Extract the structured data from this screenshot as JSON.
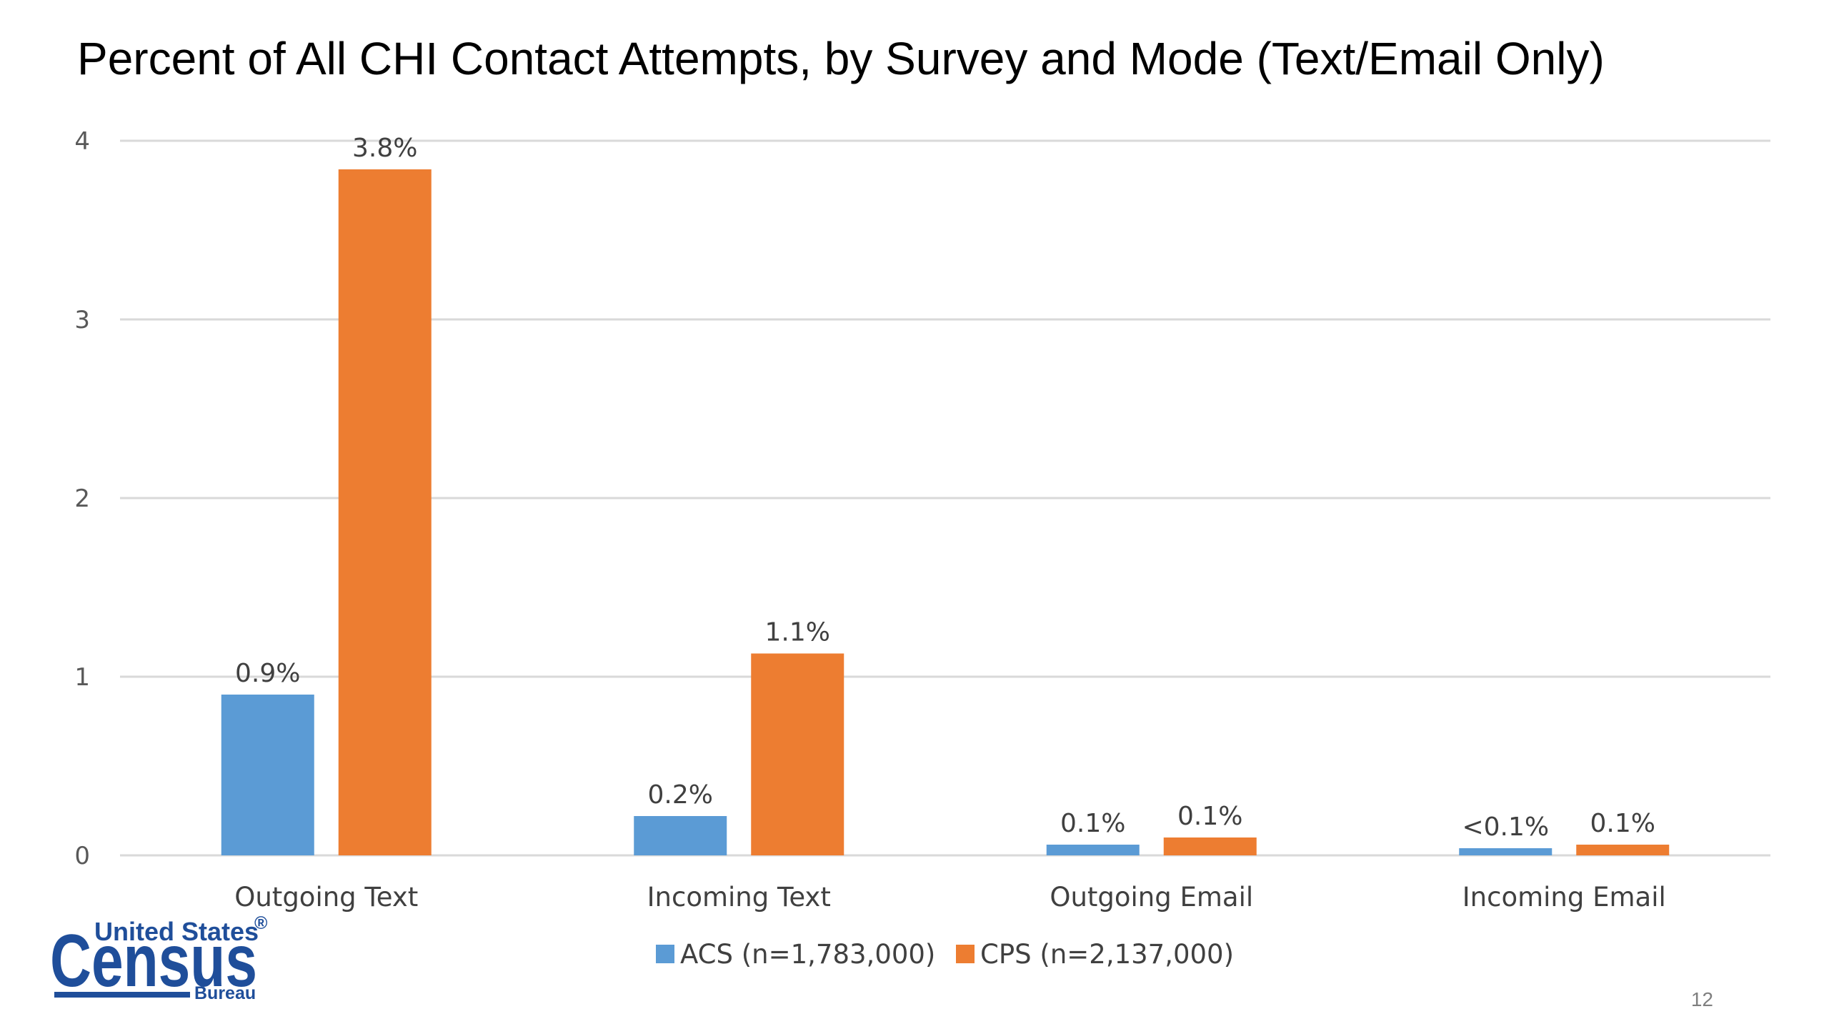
{
  "slide": {
    "title": "Percent of All CHI Contact Attempts, by Survey and Mode (Text/Email Only)",
    "page_number": "12"
  },
  "logo": {
    "line1": "United States",
    "registered_mark": "®",
    "line2": "Census",
    "line3": "Bureau",
    "color": "#1f4e9a"
  },
  "chart_data": {
    "type": "bar",
    "title": "Percent of All CHI Contact Attempts, by Survey and Mode (Text/Email Only)",
    "categories": [
      "Outgoing Text",
      "Incoming Text",
      "Outgoing Email",
      "Incoming Email"
    ],
    "series": [
      {
        "name": "ACS (n=1,783,000)",
        "color": "#5b9bd5",
        "values": [
          0.9,
          0.22,
          0.06,
          0.04
        ],
        "labels": [
          "0.9%",
          "0.2%",
          "0.1%",
          "<0.1%"
        ]
      },
      {
        "name": "CPS (n=2,137,000)",
        "color": "#ed7d31",
        "values": [
          3.84,
          1.13,
          0.1,
          0.06
        ],
        "labels": [
          "3.8%",
          "1.1%",
          "0.1%",
          "0.1%"
        ]
      }
    ],
    "ylim": [
      0,
      4
    ],
    "yticks": [
      0,
      1,
      2,
      3,
      4
    ],
    "ytick_labels": [
      "0",
      "1",
      "2",
      "3",
      "4"
    ],
    "grid": true,
    "legend_position": "bottom",
    "xlabel": "",
    "ylabel": ""
  }
}
